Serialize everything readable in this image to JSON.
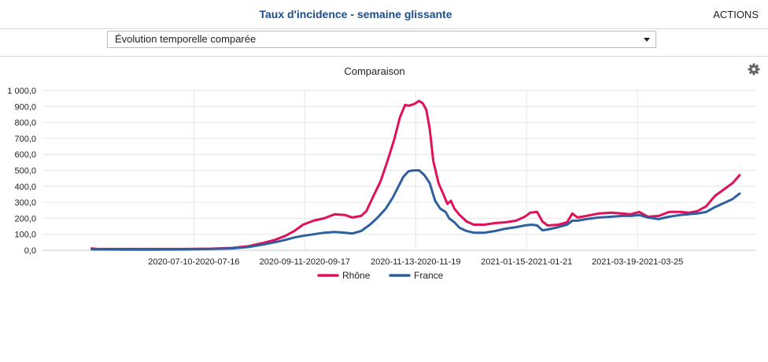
{
  "header": {
    "title": "Taux d'incidence - semaine glissante",
    "actions_label": "ACTIONS"
  },
  "toolbar": {
    "view_select": "Évolution temporelle comparée"
  },
  "colors": {
    "rhone": "#e0105a",
    "france": "#2e5f9e",
    "title": "#1f4e89",
    "grid": "#e6e6e6"
  },
  "icons": {
    "settings": "gear-icon",
    "dropdown": "chevron-down-icon"
  },
  "chart_data": {
    "type": "line",
    "title": "Comparaison",
    "ylim": [
      0,
      1000
    ],
    "y_ticks": [
      "0,0",
      "100,0",
      "200,0",
      "300,0",
      "400,0",
      "500,0",
      "600,0",
      "700,0",
      "800,0",
      "900,0",
      "1 000,0"
    ],
    "x_tick_labels": [
      "2020-07-10-2020-07-16",
      "2020-09-11-2020-09-17",
      "2020-11-13-2020-11-19",
      "2021-01-15-2021-01-21",
      "2021-03-19-2021-03-25"
    ],
    "x_tick_dates": [
      "2020-07-10",
      "2020-09-11",
      "2020-11-13",
      "2021-01-15",
      "2021-03-19"
    ],
    "grid": true,
    "legend_position": "bottom",
    "series": [
      {
        "name": "Rhône",
        "color": "#e0105a",
        "points": [
          [
            "2020-05-13",
            12
          ],
          [
            "2020-05-16",
            8
          ],
          [
            "2020-06-10",
            8
          ],
          [
            "2020-07-05",
            8
          ],
          [
            "2020-07-20",
            10
          ],
          [
            "2020-08-01",
            15
          ],
          [
            "2020-08-10",
            25
          ],
          [
            "2020-08-18",
            45
          ],
          [
            "2020-08-25",
            65
          ],
          [
            "2020-08-31",
            90
          ],
          [
            "2020-09-05",
            120
          ],
          [
            "2020-09-10",
            160
          ],
          [
            "2020-09-16",
            185
          ],
          [
            "2020-09-22",
            200
          ],
          [
            "2020-09-28",
            225
          ],
          [
            "2020-10-04",
            220
          ],
          [
            "2020-10-08",
            205
          ],
          [
            "2020-10-13",
            215
          ],
          [
            "2020-10-16",
            245
          ],
          [
            "2020-10-20",
            340
          ],
          [
            "2020-10-24",
            430
          ],
          [
            "2020-10-28",
            560
          ],
          [
            "2020-11-01",
            700
          ],
          [
            "2020-11-04",
            830
          ],
          [
            "2020-11-07",
            910
          ],
          [
            "2020-11-09",
            905
          ],
          [
            "2020-11-12",
            915
          ],
          [
            "2020-11-15",
            935
          ],
          [
            "2020-11-17",
            920
          ],
          [
            "2020-11-19",
            880
          ],
          [
            "2020-11-21",
            760
          ],
          [
            "2020-11-23",
            560
          ],
          [
            "2020-11-26",
            420
          ],
          [
            "2020-11-29",
            345
          ],
          [
            "2020-12-01",
            290
          ],
          [
            "2020-12-03",
            310
          ],
          [
            "2020-12-05",
            260
          ],
          [
            "2020-12-08",
            220
          ],
          [
            "2020-12-12",
            180
          ],
          [
            "2020-12-16",
            160
          ],
          [
            "2020-12-22",
            160
          ],
          [
            "2020-12-28",
            170
          ],
          [
            "2021-01-03",
            175
          ],
          [
            "2021-01-09",
            185
          ],
          [
            "2021-01-14",
            210
          ],
          [
            "2021-01-17",
            235
          ],
          [
            "2021-01-21",
            240
          ],
          [
            "2021-01-24",
            180
          ],
          [
            "2021-01-27",
            155
          ],
          [
            "2021-02-02",
            160
          ],
          [
            "2021-02-07",
            175
          ],
          [
            "2021-02-10",
            230
          ],
          [
            "2021-02-13",
            205
          ],
          [
            "2021-02-18",
            215
          ],
          [
            "2021-02-25",
            230
          ],
          [
            "2021-03-04",
            235
          ],
          [
            "2021-03-10",
            230
          ],
          [
            "2021-03-15",
            225
          ],
          [
            "2021-03-20",
            240
          ],
          [
            "2021-03-25",
            210
          ],
          [
            "2021-03-31",
            215
          ],
          [
            "2021-04-06",
            240
          ],
          [
            "2021-04-12",
            240
          ],
          [
            "2021-04-17",
            235
          ],
          [
            "2021-04-22",
            245
          ],
          [
            "2021-04-27",
            275
          ],
          [
            "2021-05-02",
            340
          ],
          [
            "2021-05-07",
            380
          ],
          [
            "2021-05-12",
            420
          ],
          [
            "2021-05-16",
            470
          ]
        ]
      },
      {
        "name": "France",
        "color": "#2e5f9e",
        "points": [
          [
            "2020-05-13",
            5
          ],
          [
            "2020-06-10",
            4
          ],
          [
            "2020-07-05",
            5
          ],
          [
            "2020-07-20",
            8
          ],
          [
            "2020-08-01",
            12
          ],
          [
            "2020-08-10",
            20
          ],
          [
            "2020-08-18",
            35
          ],
          [
            "2020-08-25",
            50
          ],
          [
            "2020-08-31",
            65
          ],
          [
            "2020-09-05",
            80
          ],
          [
            "2020-09-10",
            90
          ],
          [
            "2020-09-16",
            100
          ],
          [
            "2020-09-22",
            110
          ],
          [
            "2020-09-28",
            115
          ],
          [
            "2020-10-04",
            110
          ],
          [
            "2020-10-08",
            105
          ],
          [
            "2020-10-13",
            120
          ],
          [
            "2020-10-18",
            160
          ],
          [
            "2020-10-22",
            200
          ],
          [
            "2020-10-27",
            260
          ],
          [
            "2020-10-31",
            330
          ],
          [
            "2020-11-03",
            395
          ],
          [
            "2020-11-06",
            460
          ],
          [
            "2020-11-09",
            495
          ],
          [
            "2020-11-12",
            500
          ],
          [
            "2020-11-15",
            500
          ],
          [
            "2020-11-18",
            470
          ],
          [
            "2020-11-21",
            420
          ],
          [
            "2020-11-24",
            310
          ],
          [
            "2020-11-27",
            260
          ],
          [
            "2020-11-30",
            240
          ],
          [
            "2020-12-02",
            200
          ],
          [
            "2020-12-05",
            175
          ],
          [
            "2020-12-08",
            140
          ],
          [
            "2020-12-12",
            120
          ],
          [
            "2020-12-16",
            110
          ],
          [
            "2020-12-22",
            110
          ],
          [
            "2020-12-28",
            120
          ],
          [
            "2021-01-03",
            135
          ],
          [
            "2021-01-09",
            145
          ],
          [
            "2021-01-14",
            155
          ],
          [
            "2021-01-18",
            160
          ],
          [
            "2021-01-21",
            155
          ],
          [
            "2021-01-24",
            125
          ],
          [
            "2021-01-27",
            130
          ],
          [
            "2021-02-02",
            145
          ],
          [
            "2021-02-07",
            160
          ],
          [
            "2021-02-10",
            185
          ],
          [
            "2021-02-13",
            185
          ],
          [
            "2021-02-18",
            195
          ],
          [
            "2021-02-25",
            205
          ],
          [
            "2021-03-04",
            210
          ],
          [
            "2021-03-10",
            215
          ],
          [
            "2021-03-15",
            215
          ],
          [
            "2021-03-20",
            220
          ],
          [
            "2021-03-25",
            205
          ],
          [
            "2021-03-31",
            195
          ],
          [
            "2021-04-06",
            210
          ],
          [
            "2021-04-12",
            220
          ],
          [
            "2021-04-17",
            225
          ],
          [
            "2021-04-22",
            230
          ],
          [
            "2021-04-27",
            240
          ],
          [
            "2021-05-02",
            270
          ],
          [
            "2021-05-07",
            295
          ],
          [
            "2021-05-12",
            320
          ],
          [
            "2021-05-16",
            355
          ]
        ]
      }
    ]
  }
}
